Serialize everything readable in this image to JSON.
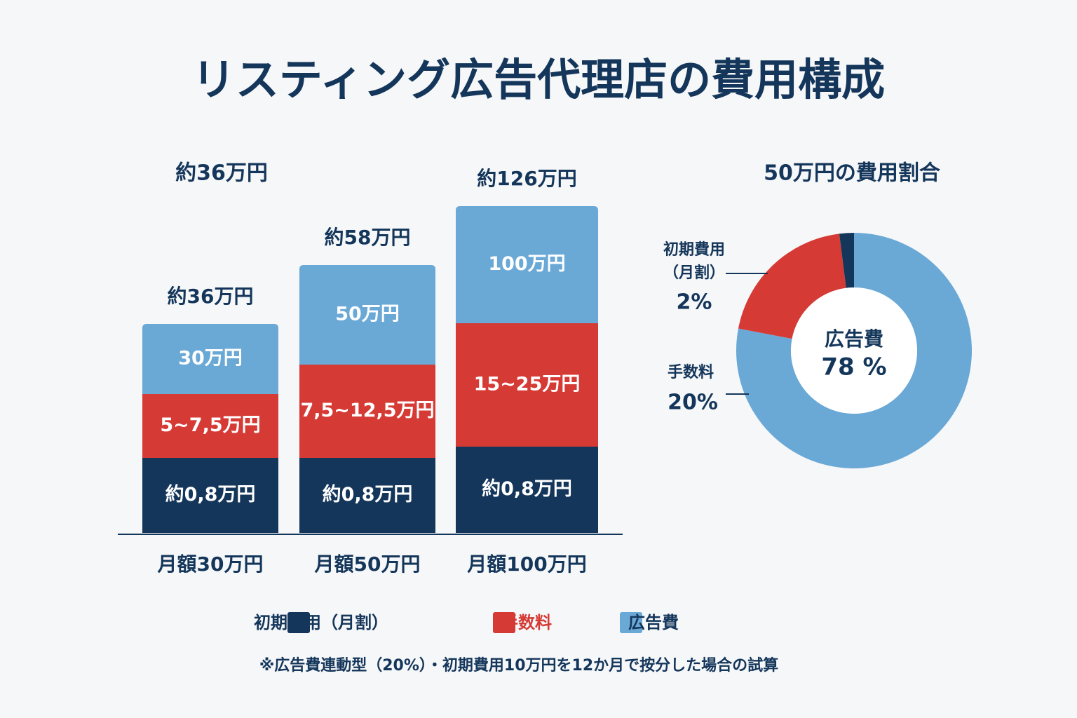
{
  "title": "リスティング広告代理店の費用構成",
  "chart_data": [
    {
      "type": "bar",
      "stacked": true,
      "headline": "約36万円",
      "categories": [
        "月額30万円",
        "月額50万円",
        "月額100万円"
      ],
      "totals": [
        "約36万円",
        "約58万円",
        "約126万円"
      ],
      "series": [
        {
          "name": "初期費用（月割）",
          "color": "#14365a",
          "labels": [
            "約0,8万円",
            "約0,8万円",
            "約0,8万円"
          ]
        },
        {
          "name": "手数料",
          "color": "#d63a35",
          "labels": [
            "5~7,5万円",
            "7,5~12,5万円",
            "15~25万円"
          ]
        },
        {
          "name": "広告費",
          "color": "#6aa8d6",
          "labels": [
            "30万円",
            "50万円",
            "100万円"
          ]
        }
      ]
    },
    {
      "type": "donut",
      "title": "50万円の費用割合",
      "categories": [
        "初期費用（月割）",
        "手数料",
        "広告費"
      ],
      "values": [
        2,
        20,
        78
      ],
      "value_labels": [
        "2%",
        "20%",
        "78 %"
      ],
      "colors": [
        "#14365a",
        "#d63a35",
        "#6aa8d6"
      ]
    }
  ],
  "footnote": "※広告費連動型（20%）・初期費用10万円を12か月で按分した場合の試算"
}
